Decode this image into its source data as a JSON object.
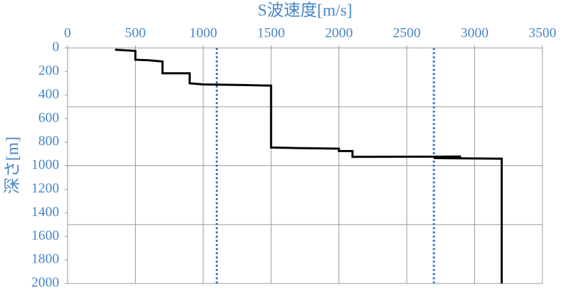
{
  "chart_data": {
    "type": "line",
    "x_label": "S波速度[m/s]",
    "y_label": "深さ[m]",
    "xlim": [
      0,
      3500
    ],
    "xticks": [
      0,
      500,
      1000,
      1500,
      2000,
      2500,
      3000,
      3500
    ],
    "ylim": [
      0,
      2000
    ],
    "yticks": [
      0,
      200,
      400,
      600,
      800,
      1000,
      1200,
      1400,
      1600,
      1800,
      2000
    ],
    "y_inverted": true,
    "x_axis_position": "top",
    "x_gridlines": [
      0,
      500,
      1000,
      1500,
      2000,
      2500,
      3000,
      3500
    ],
    "y_gridlines": [
      0,
      500,
      1000,
      1500,
      2000
    ],
    "series": [
      {
        "color": "#000000",
        "x": [
          350,
          500,
          500,
          600,
          700,
          700,
          900,
          900,
          1000,
          1300,
          1500,
          1500,
          1700,
          2000,
          2000,
          2100,
          2100,
          2900,
          2700,
          3200,
          3200
        ],
        "values": [
          15,
          25,
          100,
          105,
          115,
          215,
          215,
          300,
          310,
          315,
          320,
          845,
          850,
          855,
          875,
          875,
          925,
          922,
          935,
          940,
          2000
        ]
      }
    ],
    "reference_lines": [
      {
        "x": 1100,
        "color": "#3a7bd5"
      },
      {
        "x": 2700,
        "color": "#3a7bd5"
      }
    ]
  }
}
